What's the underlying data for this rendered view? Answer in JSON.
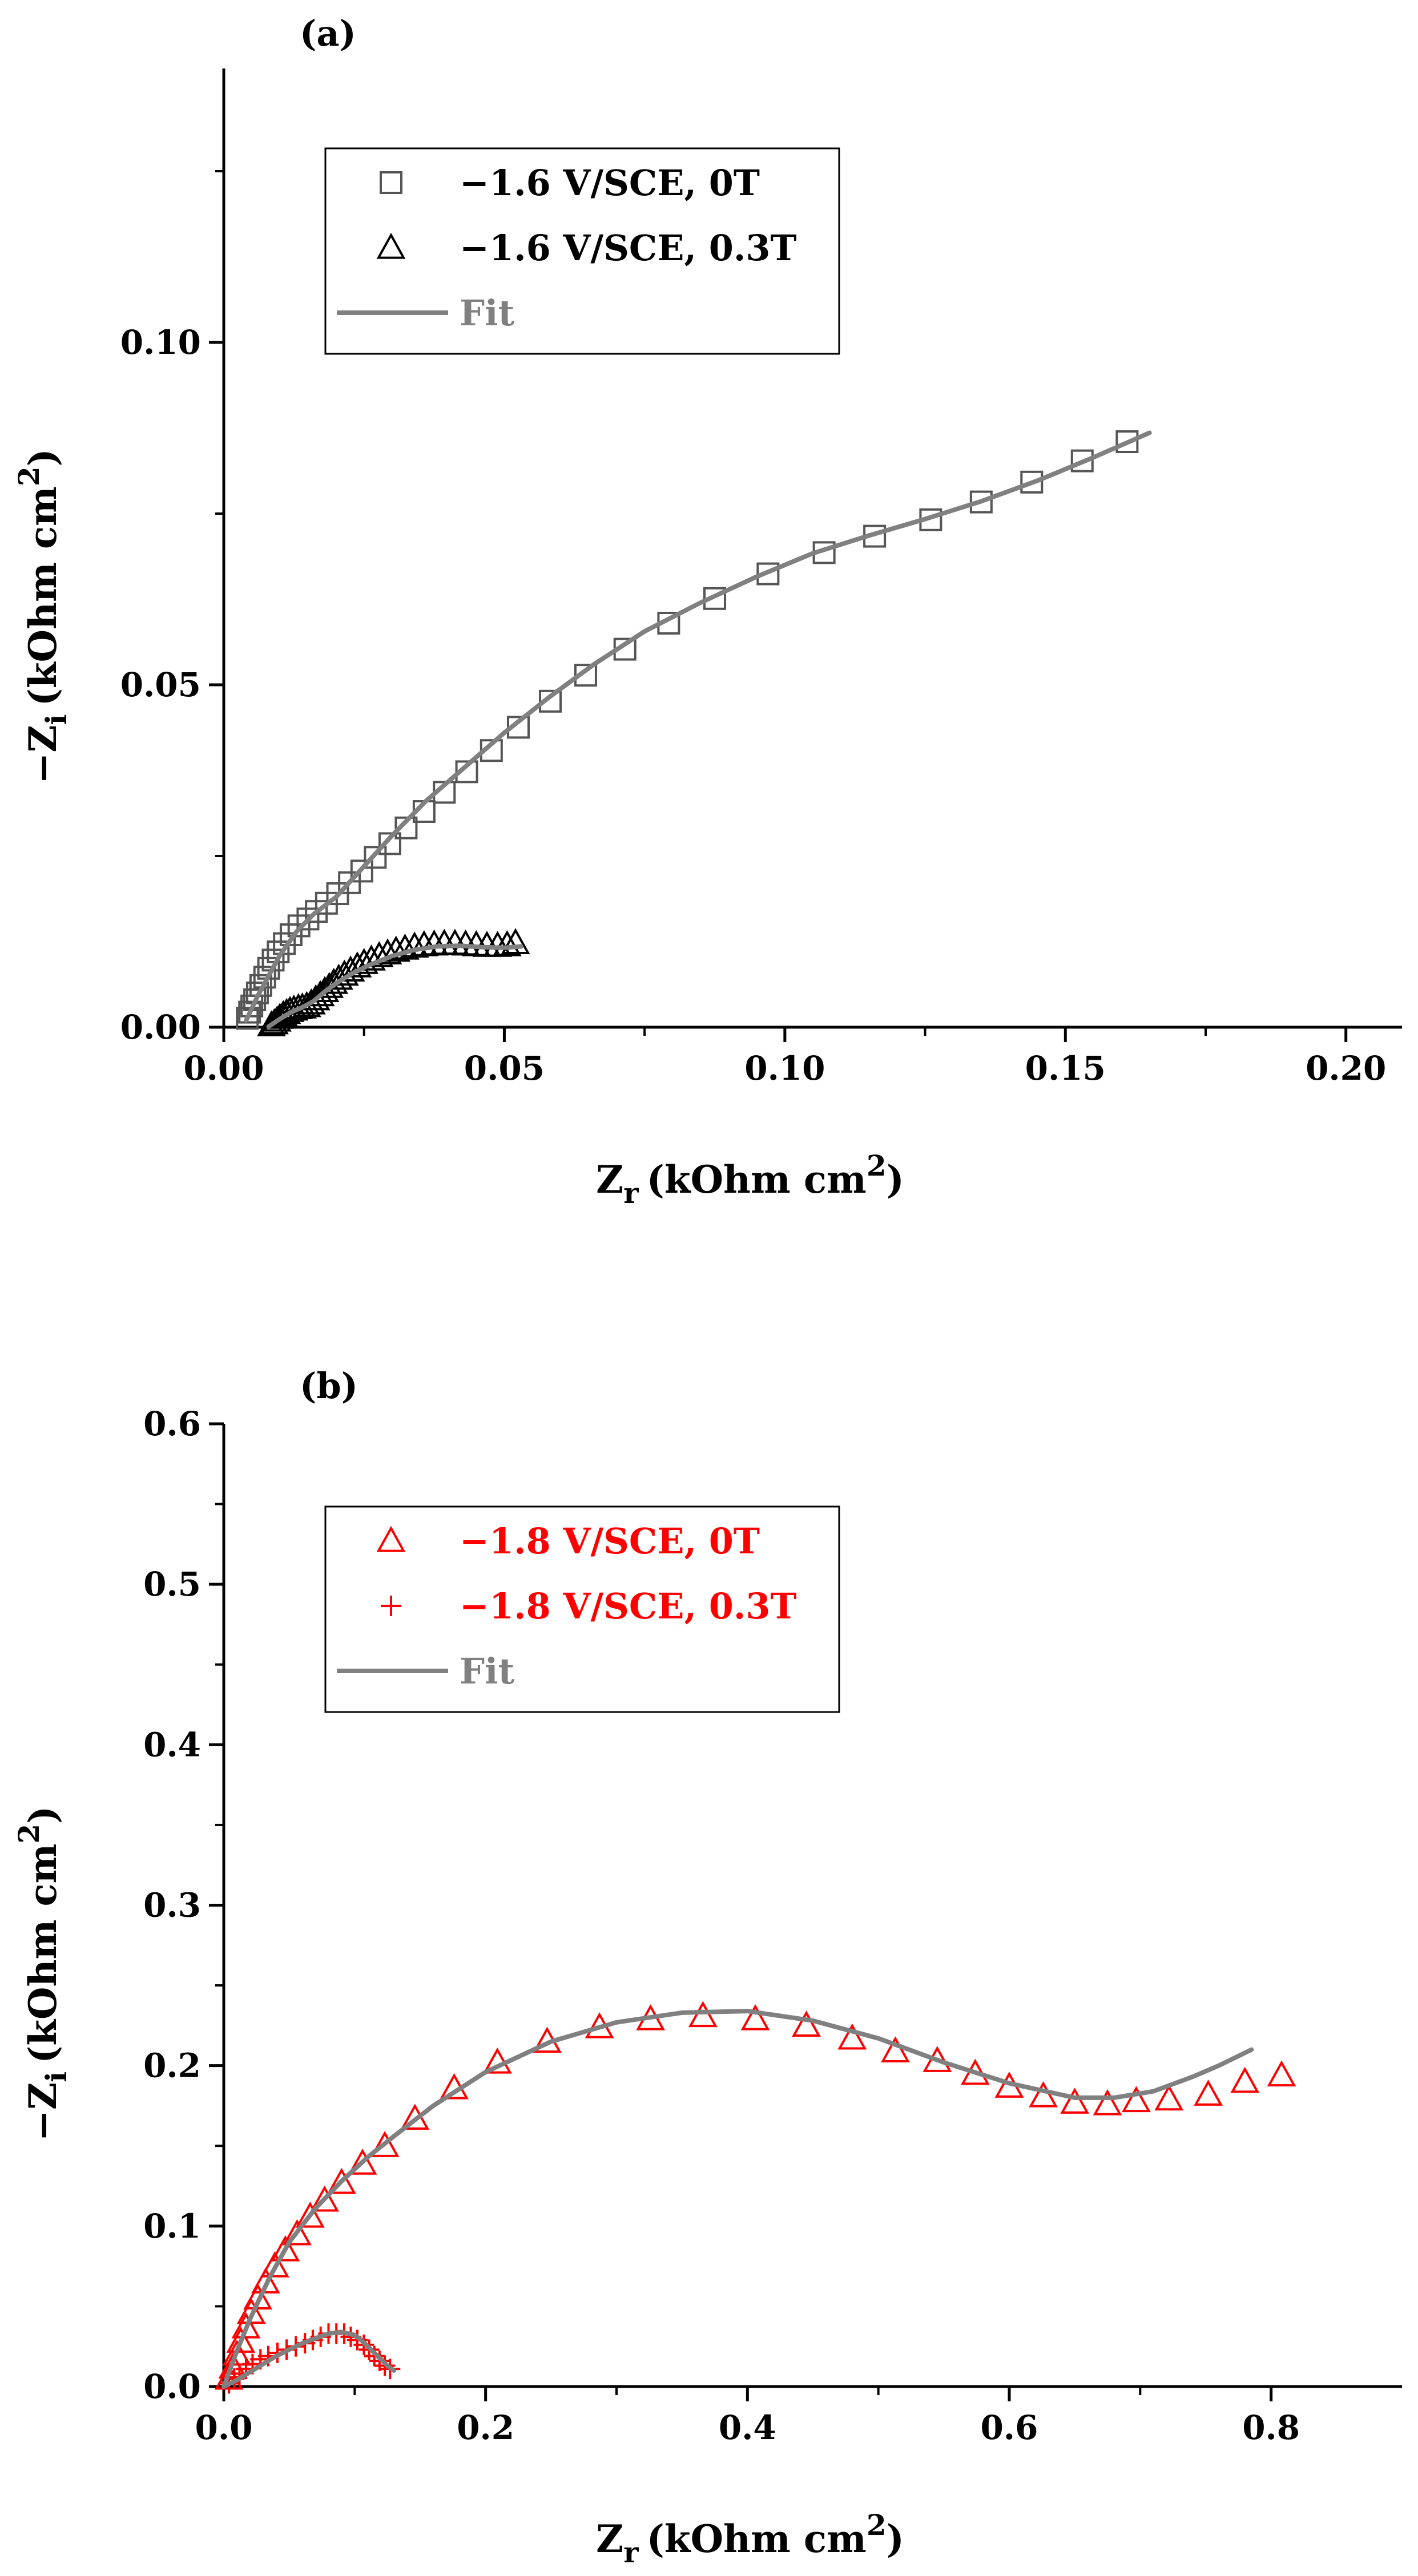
{
  "chart_data": [
    {
      "type": "scatter",
      "panel_label": "(a)",
      "xlabel": "Z",
      "xlabel_sub": "r",
      "ylabel": "−Z",
      "ylabel_sub": "i",
      "unit": "(kOhm cm",
      "unit_sup": "2",
      "unit_end": ")",
      "xlim": [
        0,
        0.21
      ],
      "ylim": [
        0,
        0.14
      ],
      "xticks": [
        0,
        0.05,
        0.1,
        0.15,
        0.2
      ],
      "xtick_labels": [
        "0.00",
        "0.05",
        "0.10",
        "0.15",
        "0.20"
      ],
      "yticks": [
        0,
        0.05,
        0.1
      ],
      "ytick_labels": [
        "0.00",
        "0.05",
        "0.10"
      ],
      "minor_x": [
        0.025,
        0.075,
        0.125,
        0.175
      ],
      "minor_y": [
        0.025,
        0.075,
        0.125
      ],
      "legend_position": "top-left",
      "series": [
        {
          "name": "−1.6 V/SCE, 0T",
          "marker": "square",
          "color": "#555555",
          "x": [
            0.0042,
            0.0046,
            0.005,
            0.0055,
            0.006,
            0.0066,
            0.0073,
            0.008,
            0.0088,
            0.0097,
            0.0108,
            0.012,
            0.0134,
            0.015,
            0.0165,
            0.0183,
            0.0203,
            0.0224,
            0.0246,
            0.027,
            0.0296,
            0.0325,
            0.0357,
            0.0393,
            0.0433,
            0.0477,
            0.0525,
            0.0582,
            0.0645,
            0.0715,
            0.0793,
            0.0875,
            0.097,
            0.107,
            0.116,
            0.126,
            0.135,
            0.144,
            0.153,
            0.161
          ],
          "y": [
            0.0013,
            0.0022,
            0.0031,
            0.004,
            0.005,
            0.0061,
            0.0073,
            0.0086,
            0.0098,
            0.011,
            0.0122,
            0.0135,
            0.0148,
            0.0158,
            0.0169,
            0.0181,
            0.0195,
            0.0211,
            0.0228,
            0.0248,
            0.0268,
            0.0291,
            0.0315,
            0.0343,
            0.0373,
            0.0404,
            0.0438,
            0.0476,
            0.0514,
            0.0552,
            0.059,
            0.0626,
            0.0662,
            0.0693,
            0.0717,
            0.0741,
            0.0767,
            0.0796,
            0.0827,
            0.0855
          ]
        },
        {
          "name": "−1.6 V/SCE, 0.3T",
          "marker": "triangle",
          "color": "#000000",
          "x": [
            0.0085,
            0.009,
            0.0095,
            0.01,
            0.0106,
            0.0112,
            0.0118,
            0.0125,
            0.0133,
            0.014,
            0.0148,
            0.0156,
            0.0164,
            0.0172,
            0.018,
            0.0188,
            0.0196,
            0.0205,
            0.0215,
            0.0226,
            0.0238,
            0.025,
            0.0263,
            0.0277,
            0.0292,
            0.0307,
            0.0323,
            0.034,
            0.0357,
            0.0375,
            0.0393,
            0.0412,
            0.0431,
            0.045,
            0.0469,
            0.0488,
            0.0505,
            0.052
          ],
          "y": [
            0.0003,
            0.0006,
            0.001,
            0.0014,
            0.0018,
            0.0021,
            0.0024,
            0.0026,
            0.0028,
            0.0029,
            0.0031,
            0.0035,
            0.0041,
            0.0047,
            0.0053,
            0.0059,
            0.0065,
            0.0071,
            0.0077,
            0.0083,
            0.0089,
            0.0094,
            0.0099,
            0.0104,
            0.0108,
            0.0112,
            0.0115,
            0.0118,
            0.012,
            0.0121,
            0.0122,
            0.0122,
            0.0121,
            0.012,
            0.0119,
            0.0119,
            0.012,
            0.0123
          ]
        },
        {
          "name": "Fit",
          "marker": "line",
          "color": "#808080",
          "curves": [
            {
              "x": [
                0.004,
                0.006,
                0.008,
                0.01,
                0.013,
                0.016,
                0.02,
                0.025,
                0.03,
                0.036,
                0.043,
                0.05,
                0.058,
                0.066,
                0.075,
                0.085,
                0.095,
                0.105,
                0.115,
                0.125,
                0.135,
                0.145,
                0.155,
                0.165
              ],
              "y": [
                0.001,
                0.0045,
                0.0075,
                0.0105,
                0.014,
                0.0165,
                0.019,
                0.0235,
                0.028,
                0.033,
                0.038,
                0.043,
                0.0482,
                0.053,
                0.0578,
                0.062,
                0.0658,
                0.0692,
                0.0718,
                0.0742,
                0.0768,
                0.0798,
                0.0832,
                0.0868
              ]
            },
            {
              "x": [
                0.008,
                0.01,
                0.012,
                0.014,
                0.016,
                0.018,
                0.02,
                0.023,
                0.026,
                0.03,
                0.034,
                0.038,
                0.042,
                0.046,
                0.05,
                0.053
              ],
              "y": [
                0.0001,
                0.0012,
                0.0022,
                0.0029,
                0.0038,
                0.0052,
                0.0064,
                0.0079,
                0.0091,
                0.0104,
                0.0113,
                0.0118,
                0.0119,
                0.0117,
                0.0116,
                0.0118
              ]
            }
          ]
        }
      ]
    },
    {
      "type": "scatter",
      "panel_label": "(b)",
      "xlabel": "Z",
      "xlabel_sub": "r",
      "ylabel": "−Z",
      "ylabel_sub": "i",
      "unit": "(kOhm cm",
      "unit_sup": "2",
      "unit_end": ")",
      "xlim": [
        0,
        0.9
      ],
      "ylim": [
        0,
        0.6
      ],
      "xticks": [
        0,
        0.2,
        0.4,
        0.6,
        0.8
      ],
      "xtick_labels": [
        "0.0",
        "0.2",
        "0.4",
        "0.6",
        "0.8"
      ],
      "yticks": [
        0,
        0.1,
        0.2,
        0.3,
        0.4,
        0.5,
        0.6
      ],
      "ytick_labels": [
        "0.0",
        "0.1",
        "0.2",
        "0.3",
        "0.4",
        "0.5",
        "0.6"
      ],
      "minor_x": [
        0.1,
        0.3,
        0.5,
        0.7
      ],
      "minor_y": [
        0.05,
        0.15,
        0.25,
        0.35,
        0.45,
        0.55
      ],
      "legend_position": "top-left",
      "series": [
        {
          "name": "−1.8 V/SCE, 0T",
          "marker": "triangle",
          "color": "#ff0000",
          "x": [
            0.004,
            0.007,
            0.01,
            0.013,
            0.017,
            0.021,
            0.026,
            0.032,
            0.039,
            0.047,
            0.056,
            0.066,
            0.077,
            0.09,
            0.106,
            0.123,
            0.146,
            0.176,
            0.209,
            0.247,
            0.287,
            0.326,
            0.366,
            0.406,
            0.445,
            0.48,
            0.513,
            0.545,
            0.574,
            0.6,
            0.626,
            0.65,
            0.675,
            0.697,
            0.722,
            0.752,
            0.78,
            0.808
          ],
          "y": [
            0.005,
            0.012,
            0.02,
            0.028,
            0.037,
            0.046,
            0.055,
            0.065,
            0.075,
            0.085,
            0.095,
            0.106,
            0.116,
            0.127,
            0.139,
            0.15,
            0.167,
            0.186,
            0.202,
            0.215,
            0.224,
            0.229,
            0.231,
            0.229,
            0.225,
            0.217,
            0.209,
            0.203,
            0.195,
            0.187,
            0.181,
            0.177,
            0.176,
            0.178,
            0.179,
            0.182,
            0.19,
            0.194
          ]
        },
        {
          "name": "−1.8 V/SCE, 0.3T",
          "marker": "plus",
          "color": "#ff0000",
          "x": [
            0.004,
            0.008,
            0.012,
            0.017,
            0.022,
            0.028,
            0.034,
            0.041,
            0.048,
            0.055,
            0.062,
            0.068,
            0.074,
            0.08,
            0.086,
            0.092,
            0.097,
            0.102,
            0.107,
            0.111,
            0.115,
            0.119,
            0.123,
            0.127
          ],
          "y": [
            0.002,
            0.005,
            0.008,
            0.011,
            0.014,
            0.017,
            0.019,
            0.021,
            0.023,
            0.025,
            0.027,
            0.029,
            0.031,
            0.033,
            0.033,
            0.033,
            0.031,
            0.029,
            0.026,
            0.023,
            0.019,
            0.016,
            0.013,
            0.011
          ]
        },
        {
          "name": "Fit",
          "marker": "line",
          "color": "#808080",
          "curves": [
            {
              "x": [
                0.0,
                0.01,
                0.02,
                0.035,
                0.05,
                0.07,
                0.09,
                0.11,
                0.13,
                0.16,
                0.2,
                0.25,
                0.3,
                0.35,
                0.4,
                0.45,
                0.5,
                0.55,
                0.6,
                0.65,
                0.68,
                0.71,
                0.74,
                0.76,
                0.785
              ],
              "y": [
                0.0,
                0.022,
                0.042,
                0.068,
                0.09,
                0.111,
                0.128,
                0.143,
                0.156,
                0.175,
                0.196,
                0.215,
                0.227,
                0.233,
                0.234,
                0.228,
                0.217,
                0.202,
                0.189,
                0.18,
                0.18,
                0.184,
                0.193,
                0.2,
                0.21
              ]
            },
            {
              "x": [
                0.0,
                0.01,
                0.02,
                0.03,
                0.04,
                0.05,
                0.06,
                0.07,
                0.08,
                0.09,
                0.1,
                0.105,
                0.11,
                0.115,
                0.12,
                0.125,
                0.13
              ],
              "y": [
                0.0,
                0.004,
                0.009,
                0.014,
                0.019,
                0.023,
                0.027,
                0.03,
                0.033,
                0.034,
                0.032,
                0.029,
                0.025,
                0.021,
                0.017,
                0.013,
                0.01
              ]
            }
          ]
        }
      ]
    }
  ]
}
